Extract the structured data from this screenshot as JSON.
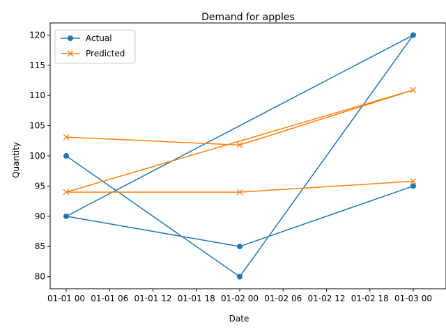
{
  "chart_data": {
    "type": "line",
    "title": "Demand for apples",
    "xlabel": "Date",
    "ylabel": "Quantity",
    "x_tick_labels": [
      "01-01 00",
      "01-01 06",
      "01-01 12",
      "01-01 18",
      "01-02 00",
      "01-02 06",
      "01-02 12",
      "01-02 18",
      "01-03 00"
    ],
    "ylim": [
      78,
      122
    ],
    "y_ticks": [
      80,
      85,
      90,
      95,
      100,
      105,
      110,
      115,
      120
    ],
    "legend_position": "upper-left",
    "grid": false,
    "series": [
      {
        "name": "Actual",
        "color": "#1f77b4",
        "marker": "circle",
        "points": [
          {
            "x": "01-01 00",
            "y": 100
          },
          {
            "x": "01-02 00",
            "y": 80
          },
          {
            "x": "01-03 00",
            "y": 120
          },
          {
            "x": "01-01 00",
            "y": 90
          },
          {
            "x": "01-02 00",
            "y": 85
          },
          {
            "x": "01-03 00",
            "y": 95
          }
        ]
      },
      {
        "name": "Predicted",
        "color": "#ff7f0e",
        "marker": "x",
        "points": [
          {
            "x": "01-01 00",
            "y": 103.1
          },
          {
            "x": "01-02 00",
            "y": 101.8
          },
          {
            "x": "01-03 00",
            "y": 110.9
          },
          {
            "x": "01-01 00",
            "y": 94
          },
          {
            "x": "01-02 00",
            "y": 94
          },
          {
            "x": "01-03 00",
            "y": 95.8
          }
        ]
      }
    ]
  }
}
